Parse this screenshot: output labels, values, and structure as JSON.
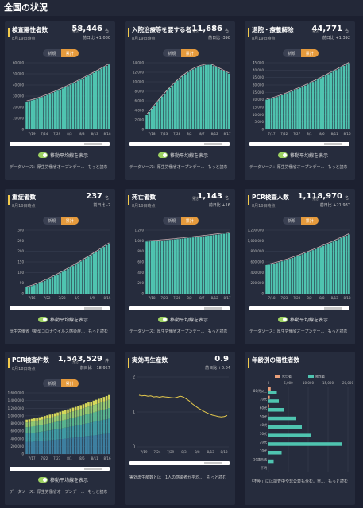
{
  "header": {
    "title": "全国の状況"
  },
  "common": {
    "toggle_new": "新規",
    "toggle_total": "累計",
    "moving_avg": "移動平均線を表示",
    "more": "もっと読む"
  },
  "cards": [
    {
      "title": "検査陽性者数",
      "label": "累計",
      "value": "58,446",
      "unit": "名",
      "diff": "前日比 +1,080",
      "date": "8月19日時点",
      "source": "データソース：厚生労働省オープンデー…",
      "chart_data": {
        "type": "bar",
        "ylim": [
          0,
          60000
        ],
        "yticks": [
          "60,000",
          "50,000",
          "40,000",
          "30,000",
          "20,000",
          "10,000",
          "0"
        ],
        "xticks": [
          "7/19",
          "7/24",
          "7/29",
          "8/3",
          "8/8",
          "8/13",
          "8/18"
        ],
        "start": 25000,
        "end": 58446,
        "curve": "rise"
      }
    },
    {
      "title": "入院治療等を要する者",
      "label": "累計",
      "value": "11,686",
      "unit": "名",
      "diff": "前日比 -398",
      "date": "8月19日時点",
      "source": "データソース：厚生労働省オープンデー…",
      "chart_data": {
        "type": "bar",
        "ylim": [
          0,
          14000
        ],
        "yticks": [
          "14,000",
          "12,000",
          "10,000",
          "8,000",
          "6,000",
          "4,000",
          "2,000",
          "0"
        ],
        "xticks": [
          "7/18",
          "7/23",
          "7/28",
          "8/2",
          "8/7",
          "8/12",
          "8/17"
        ],
        "start": 3000,
        "end": 11686,
        "curve": "hump",
        "peak": 13600
      }
    },
    {
      "title": "退院・療養解除",
      "label": "累計",
      "value": "44,771",
      "unit": "名",
      "diff": "前日比 +1,392",
      "date": "8月19日時点",
      "source": "データソース：厚生労働省オープンデー…",
      "chart_data": {
        "type": "bar",
        "ylim": [
          0,
          45000
        ],
        "yticks": [
          "45,000",
          "40,000",
          "35,000",
          "30,000",
          "25,000",
          "20,000",
          "15,000",
          "10,000",
          "5,000",
          "0"
        ],
        "xticks": [
          "7/17",
          "7/22",
          "7/27",
          "8/1",
          "8/6",
          "8/11",
          "8/16"
        ],
        "start": 20000,
        "end": 44771,
        "curve": "rise"
      }
    },
    {
      "title": "重症者数",
      "label": "",
      "value": "237",
      "unit": "名",
      "diff": "前日比 -2",
      "date": "8月19日時点",
      "source": "厚生労働省「新型コロナウイルス感染症…",
      "chart_data": {
        "type": "bar",
        "ylim": [
          0,
          300
        ],
        "yticks": [
          "300",
          "250",
          "200",
          "150",
          "100",
          "50",
          "0"
        ],
        "xticks": [
          "7/16",
          "7/22",
          "7/28",
          "8/3",
          "8/9",
          "8/15"
        ],
        "start": 30,
        "end": 237,
        "curve": "rise"
      }
    },
    {
      "title": "死亡者数",
      "label": "累計",
      "value": "1,143",
      "unit": "名",
      "diff": "前日比 +16",
      "date": "8月19日時点",
      "source": "データソース：厚生労働省オープンデー…",
      "chart_data": {
        "type": "bar",
        "ylim": [
          0,
          1200
        ],
        "yticks": [
          "1,200",
          "1,000",
          "800",
          "600",
          "400",
          "200",
          "0"
        ],
        "xticks": [
          "7/18",
          "7/23",
          "7/28",
          "8/2",
          "8/7",
          "8/12",
          "8/17"
        ],
        "start": 985,
        "end": 1143,
        "curve": "rise"
      }
    },
    {
      "title": "PCR検査人数",
      "label": "累計",
      "value": "1,118,970",
      "unit": "名",
      "diff": "前日比 +21,937",
      "date": "8月19日時点",
      "source": "データソース：厚生労働省オープンデー…",
      "chart_data": {
        "type": "bar",
        "ylim": [
          0,
          1200000
        ],
        "yticks": [
          "1,200,000",
          "1,000,000",
          "800,000",
          "600,000",
          "400,000",
          "200,000",
          "0"
        ],
        "xticks": [
          "7/18",
          "7/23",
          "7/28",
          "8/2",
          "8/8",
          "8/13",
          "8/18"
        ],
        "start": 540000,
        "end": 1118970,
        "curve": "rise"
      }
    },
    {
      "title": "PCR検査件数",
      "label": "累計",
      "value": "1,543,529",
      "unit": "件",
      "diff": "前日比 +18,957",
      "date": "8月18日時点",
      "source": "データソース：厚生労働省オープンデー…",
      "chart_data": {
        "type": "stacked-bar",
        "ylim": [
          0,
          1600000
        ],
        "yticks": [
          "1,600,000",
          "1,400,000",
          "1,200,000",
          "1,000,000",
          "800,000",
          "600,000",
          "400,000",
          "200,000",
          "0"
        ],
        "xticks": [
          "7/17",
          "7/22",
          "7/27",
          "8/1",
          "8/6",
          "8/11",
          "8/16"
        ],
        "start": 900000,
        "end": 1543529,
        "curve": "rise"
      }
    }
  ],
  "rt": {
    "title": "実効再生産数",
    "value": "0.9",
    "diff": "前日比 +0.04",
    "desc": "実効再生産数とは「1人の感染者が平均…",
    "chart_data": {
      "type": "line",
      "ylim": [
        0,
        2
      ],
      "yticks": [
        "2",
        "1",
        "0"
      ],
      "xticks": [
        "7/19",
        "7/24",
        "7/29",
        "8/3",
        "8/8",
        "8/13",
        "8/18"
      ],
      "values": [
        1.48,
        1.46,
        1.47,
        1.45,
        1.46,
        1.43,
        1.44,
        1.42,
        1.44,
        1.43,
        1.42,
        1.41,
        1.4,
        1.42,
        1.45,
        1.43,
        1.38,
        1.32,
        1.24,
        1.18,
        1.12,
        1.07,
        1.02,
        0.98,
        0.94,
        0.91,
        0.89,
        0.87,
        0.86,
        0.87,
        0.9
      ]
    }
  },
  "age": {
    "title": "年齢別の陽性者数",
    "legend": [
      "死亡者",
      "陽性者"
    ],
    "xticks": [
      "0",
      "5,000",
      "10,000",
      "15,000",
      "20,000"
    ],
    "groups": [
      "80代以上",
      "70代",
      "60代",
      "50代",
      "40代",
      "30代",
      "20代",
      "10代",
      "10歳未満",
      "不明"
    ],
    "positives": [
      2100,
      2600,
      3800,
      7000,
      8400,
      10800,
      18500,
      3300,
      1300,
      0
    ],
    "deaths": [
      560,
      320,
      150,
      45,
      15,
      6,
      2,
      0,
      0,
      0
    ],
    "note": "「不明」には調査中や非公表も含む。重…"
  }
}
